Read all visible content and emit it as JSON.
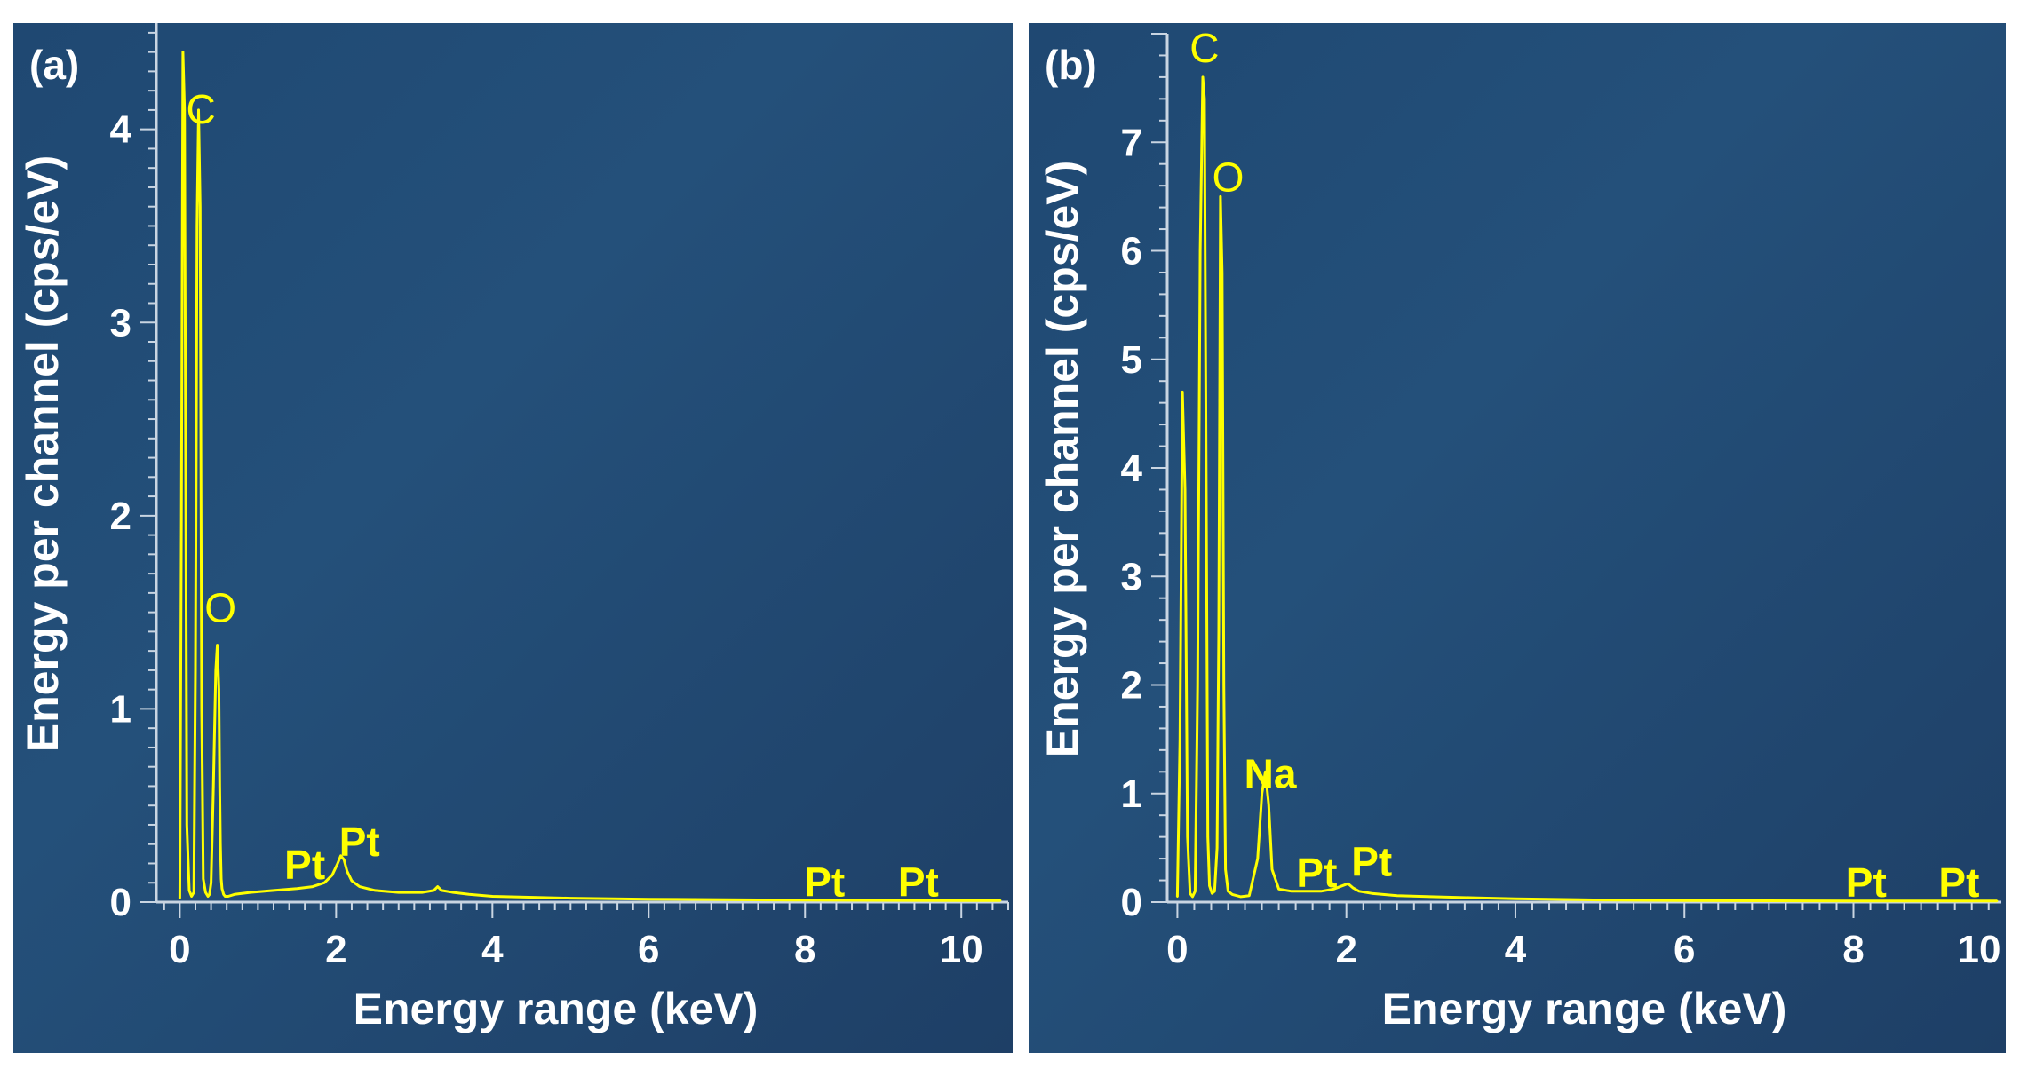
{
  "chart_data": [
    {
      "type": "line",
      "panel_label": "(a)",
      "xlabel": "Energy range (keV)",
      "ylabel": "Energy per channel (cps/eV)",
      "xlim": [
        -0.3,
        10.6
      ],
      "ylim": [
        0,
        4.55
      ],
      "x_ticks": [
        0,
        2,
        4,
        6,
        8,
        10
      ],
      "y_ticks": [
        0,
        1,
        2,
        3,
        4
      ],
      "grid": false,
      "background": "#24507a",
      "line_color": "#ffff00",
      "label_color": "#ffff00",
      "series": [
        {
          "x": [
            0,
            0.02,
            0.04,
            0.06,
            0.09,
            0.12,
            0.15,
            0.18,
            0.2,
            0.22,
            0.24,
            0.26,
            0.28,
            0.3,
            0.33,
            0.36,
            0.38,
            0.4,
            0.43,
            0.46,
            0.48,
            0.5,
            0.51,
            0.52,
            0.53,
            0.54,
            0.56,
            0.58,
            0.62,
            0.7,
            0.9,
            1.2,
            1.5,
            1.7,
            1.85,
            1.95,
            2.02,
            2.06,
            2.1,
            2.14,
            2.2,
            2.3,
            2.5,
            2.8,
            3.1,
            3.25,
            3.3,
            3.35,
            3.5,
            3.7,
            4.0,
            5.0,
            6.0,
            8.0,
            10.0,
            10.5
          ],
          "y": [
            0.02,
            2.0,
            4.4,
            4.1,
            0.4,
            0.06,
            0.03,
            0.05,
            1.2,
            3.5,
            4.1,
            3.6,
            1.0,
            0.12,
            0.05,
            0.03,
            0.04,
            0.1,
            0.6,
            1.2,
            1.33,
            1.1,
            0.6,
            0.3,
            0.12,
            0.07,
            0.04,
            0.03,
            0.03,
            0.04,
            0.05,
            0.06,
            0.07,
            0.08,
            0.1,
            0.14,
            0.2,
            0.24,
            0.22,
            0.16,
            0.11,
            0.08,
            0.06,
            0.05,
            0.05,
            0.06,
            0.08,
            0.06,
            0.05,
            0.04,
            0.03,
            0.02,
            0.015,
            0.01,
            0.008,
            0.008
          ]
        }
      ],
      "annotations": [
        {
          "text": "C",
          "x": 0.27,
          "y": 4.03
        },
        {
          "text": "O",
          "x": 0.52,
          "y": 1.45
        },
        {
          "text": "Pt",
          "x": 1.6,
          "y": 0.12
        },
        {
          "text": "Pt",
          "x": 2.3,
          "y": 0.24
        },
        {
          "text": "Pt",
          "x": 8.25,
          "y": 0.03
        },
        {
          "text": "Pt",
          "x": 9.45,
          "y": 0.03
        }
      ]
    },
    {
      "type": "line",
      "panel_label": "(b)",
      "xlabel": "Energy range (keV)",
      "ylabel": "Energy per channel (cps/eV)",
      "xlim": [
        -0.12,
        9.75
      ],
      "ylim": [
        0,
        8.0
      ],
      "x_ticks": [
        0,
        2,
        4,
        6,
        8,
        10
      ],
      "y_ticks": [
        0,
        1,
        2,
        3,
        4,
        5,
        6,
        7
      ],
      "grid": false,
      "background": "#24507a",
      "line_color": "#ffff00",
      "label_color": "#ffff00",
      "series": [
        {
          "x": [
            0,
            0.03,
            0.06,
            0.09,
            0.12,
            0.15,
            0.18,
            0.21,
            0.24,
            0.27,
            0.3,
            0.32,
            0.34,
            0.36,
            0.38,
            0.41,
            0.44,
            0.47,
            0.49,
            0.51,
            0.53,
            0.55,
            0.57,
            0.6,
            0.65,
            0.75,
            0.85,
            0.95,
            1.0,
            1.04,
            1.08,
            1.12,
            1.2,
            1.35,
            1.5,
            1.7,
            1.85,
            1.95,
            2.02,
            2.08,
            2.15,
            2.3,
            2.6,
            3.0,
            3.5,
            4.0,
            5.0,
            6.0,
            8.0,
            9.7
          ],
          "y": [
            0.05,
            1.5,
            4.7,
            3.8,
            0.6,
            0.08,
            0.05,
            0.1,
            2.0,
            6.0,
            7.6,
            7.4,
            4.0,
            0.6,
            0.15,
            0.08,
            0.1,
            0.5,
            2.5,
            6.5,
            5.8,
            2.0,
            0.3,
            0.1,
            0.07,
            0.05,
            0.06,
            0.4,
            1.0,
            1.2,
            0.9,
            0.3,
            0.12,
            0.1,
            0.1,
            0.1,
            0.12,
            0.15,
            0.17,
            0.13,
            0.1,
            0.08,
            0.06,
            0.05,
            0.04,
            0.03,
            0.02,
            0.015,
            0.01,
            0.01
          ]
        }
      ],
      "annotations": [
        {
          "text": "C",
          "x": 0.32,
          "y": 7.82
        },
        {
          "text": "O",
          "x": 0.6,
          "y": 6.55
        },
        {
          "text": "Na",
          "x": 1.1,
          "y": 1.05
        },
        {
          "text": "Pt",
          "x": 1.65,
          "y": 0.14
        },
        {
          "text": "Pt",
          "x": 2.3,
          "y": 0.24
        },
        {
          "text": "Pt",
          "x": 8.15,
          "y": 0.05
        },
        {
          "text": "Pt",
          "x": 9.25,
          "y": 0.05
        }
      ]
    }
  ]
}
